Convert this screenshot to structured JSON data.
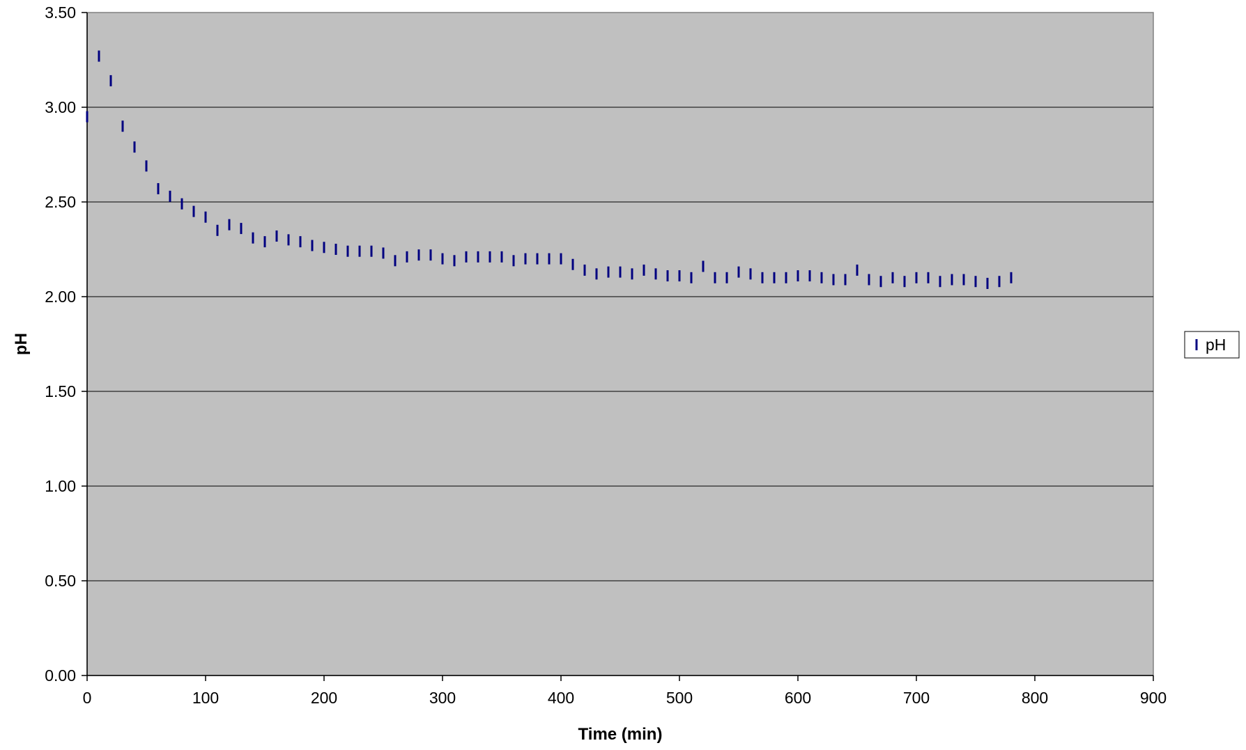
{
  "chart_data": {
    "type": "scatter",
    "title": "",
    "xlabel": "Time (min)",
    "ylabel": "pH",
    "xlim": [
      0,
      900
    ],
    "ylim": [
      0,
      3.5
    ],
    "x_ticks": [
      "0",
      "100",
      "200",
      "300",
      "400",
      "500",
      "600",
      "700",
      "800",
      "900"
    ],
    "y_ticks": [
      "0.00",
      "0.50",
      "1.00",
      "1.50",
      "2.00",
      "2.50",
      "3.00",
      "3.50"
    ],
    "plot_background": "#c0c0c0",
    "gridlines": "horizontal",
    "legend_position": "right",
    "marker": "dash",
    "series": [
      {
        "name": "pH",
        "color": "#000080",
        "x": [
          0,
          10,
          20,
          30,
          40,
          50,
          60,
          70,
          80,
          90,
          100,
          110,
          120,
          130,
          140,
          150,
          160,
          170,
          180,
          190,
          200,
          210,
          220,
          230,
          240,
          250,
          260,
          270,
          280,
          290,
          300,
          310,
          320,
          330,
          340,
          350,
          360,
          370,
          380,
          390,
          400,
          410,
          420,
          430,
          440,
          450,
          460,
          470,
          480,
          490,
          500,
          510,
          520,
          530,
          540,
          550,
          560,
          570,
          580,
          590,
          600,
          610,
          620,
          630,
          640,
          650,
          660,
          670,
          680,
          690,
          700,
          710,
          720,
          730,
          740,
          750,
          760,
          770,
          780
        ],
        "y": [
          2.95,
          3.27,
          3.14,
          2.9,
          2.79,
          2.69,
          2.57,
          2.53,
          2.49,
          2.45,
          2.42,
          2.35,
          2.38,
          2.36,
          2.31,
          2.29,
          2.32,
          2.3,
          2.29,
          2.27,
          2.26,
          2.25,
          2.24,
          2.24,
          2.24,
          2.23,
          2.19,
          2.21,
          2.22,
          2.22,
          2.2,
          2.19,
          2.21,
          2.21,
          2.21,
          2.21,
          2.19,
          2.2,
          2.2,
          2.2,
          2.2,
          2.17,
          2.14,
          2.12,
          2.13,
          2.13,
          2.12,
          2.14,
          2.12,
          2.11,
          2.11,
          2.1,
          2.16,
          2.1,
          2.1,
          2.13,
          2.12,
          2.1,
          2.1,
          2.1,
          2.11,
          2.11,
          2.1,
          2.09,
          2.09,
          2.14,
          2.09,
          2.08,
          2.1,
          2.08,
          2.1,
          2.1,
          2.08,
          2.09,
          2.09,
          2.08,
          2.07,
          2.08,
          2.1
        ]
      }
    ]
  }
}
